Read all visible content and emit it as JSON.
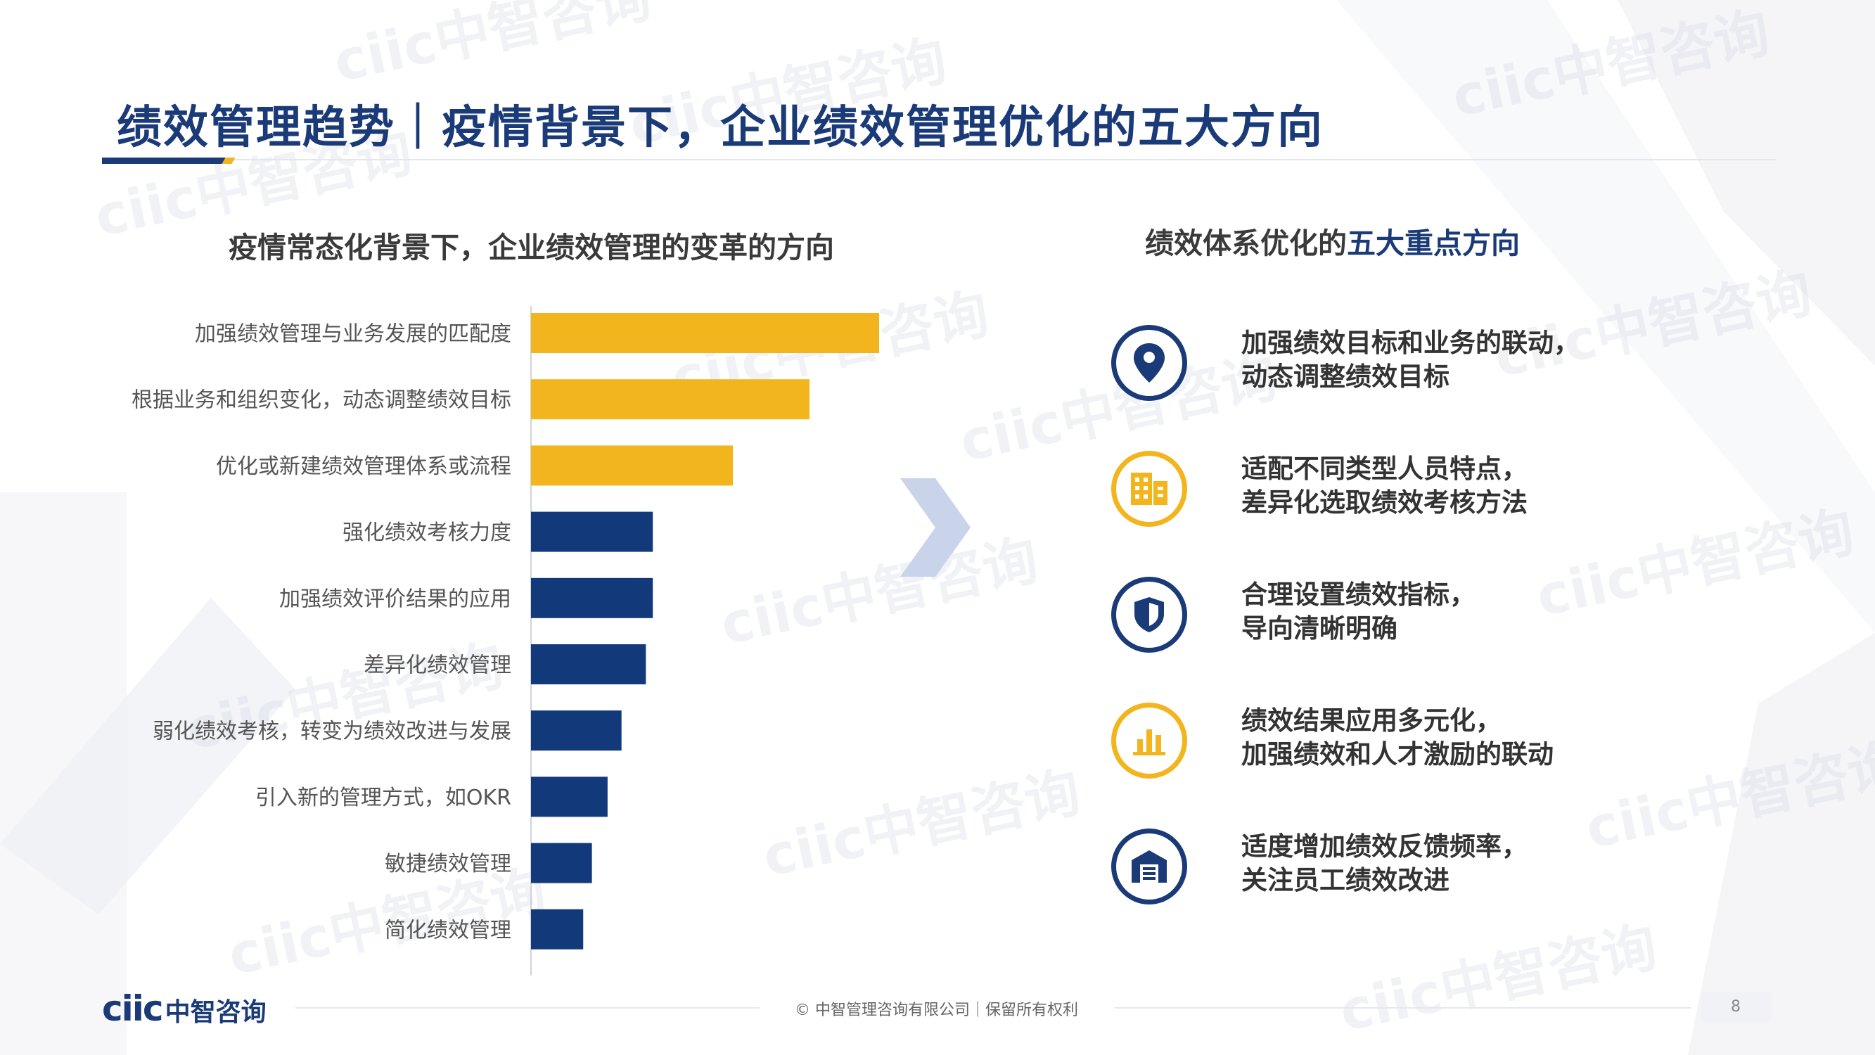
{
  "header": {
    "title": "绩效管理趋势｜疫情背景下，企业绩效管理优化的五大方向"
  },
  "watermark_text": "ciic中智咨询",
  "left_panel": {
    "title": "疫情常态化背景下，企业绩效管理的变革的方向"
  },
  "chart_data": {
    "type": "bar",
    "orientation": "horizontal",
    "title": "疫情常态化背景下，企业绩效管理的变革的方向",
    "xlabel": "",
    "ylabel": "",
    "grid": false,
    "categories": [
      "加强绩效管理与业务发展的匹配度",
      "根据业务和组织变化，动态调整绩效目标",
      "优化或新建绩效管理体系或流程",
      "强化绩效考核力度",
      "加强绩效评价结果的应用",
      "差异化绩效管理",
      "弱化绩效考核，转变为绩效改进与发展",
      "引入新的管理方式，如OKR",
      "敏捷绩效管理",
      "简化绩效管理"
    ],
    "values": [
      100,
      80,
      58,
      35,
      35,
      33,
      26,
      22,
      17.5,
      15
    ],
    "highlight_colors": [
      "#f2b51e",
      "#f2b51e",
      "#f2b51e",
      "#123a7a",
      "#123a7a",
      "#123a7a",
      "#123a7a",
      "#123a7a",
      "#123a7a",
      "#123a7a"
    ],
    "xlim": [
      0,
      100
    ]
  },
  "right_panel": {
    "title_prefix": "绩效体系优化的",
    "title_highlight": "五大重点方向",
    "items": [
      {
        "icon": "location-pin-icon",
        "style": "navy",
        "line1": "加强绩效目标和业务的联动，",
        "line2": "动态调整绩效目标"
      },
      {
        "icon": "building-icon",
        "style": "gold",
        "line1": "适配不同类型人员特点，",
        "line2": "差异化选取绩效考核方法"
      },
      {
        "icon": "shield-icon",
        "style": "navy",
        "line1": "合理设置绩效指标，",
        "line2": "导向清晰明确"
      },
      {
        "icon": "bar-chart-icon",
        "style": "gold",
        "line1": "绩效结果应用多元化，",
        "line2": "加强绩效和人才激励的联动"
      },
      {
        "icon": "warehouse-icon",
        "style": "navy",
        "line1": "适度增加绩效反馈频率，",
        "line2": "关注员工绩效改进"
      }
    ]
  },
  "footer": {
    "logo_text": "ciic",
    "logo_cn": "中智咨询",
    "copyright": "© 中智管理咨询有限公司｜保留所有权利",
    "page_number": "8"
  },
  "colors": {
    "navy": "#1a3a78",
    "gold": "#f2b51e",
    "bar_navy": "#123a7a"
  }
}
